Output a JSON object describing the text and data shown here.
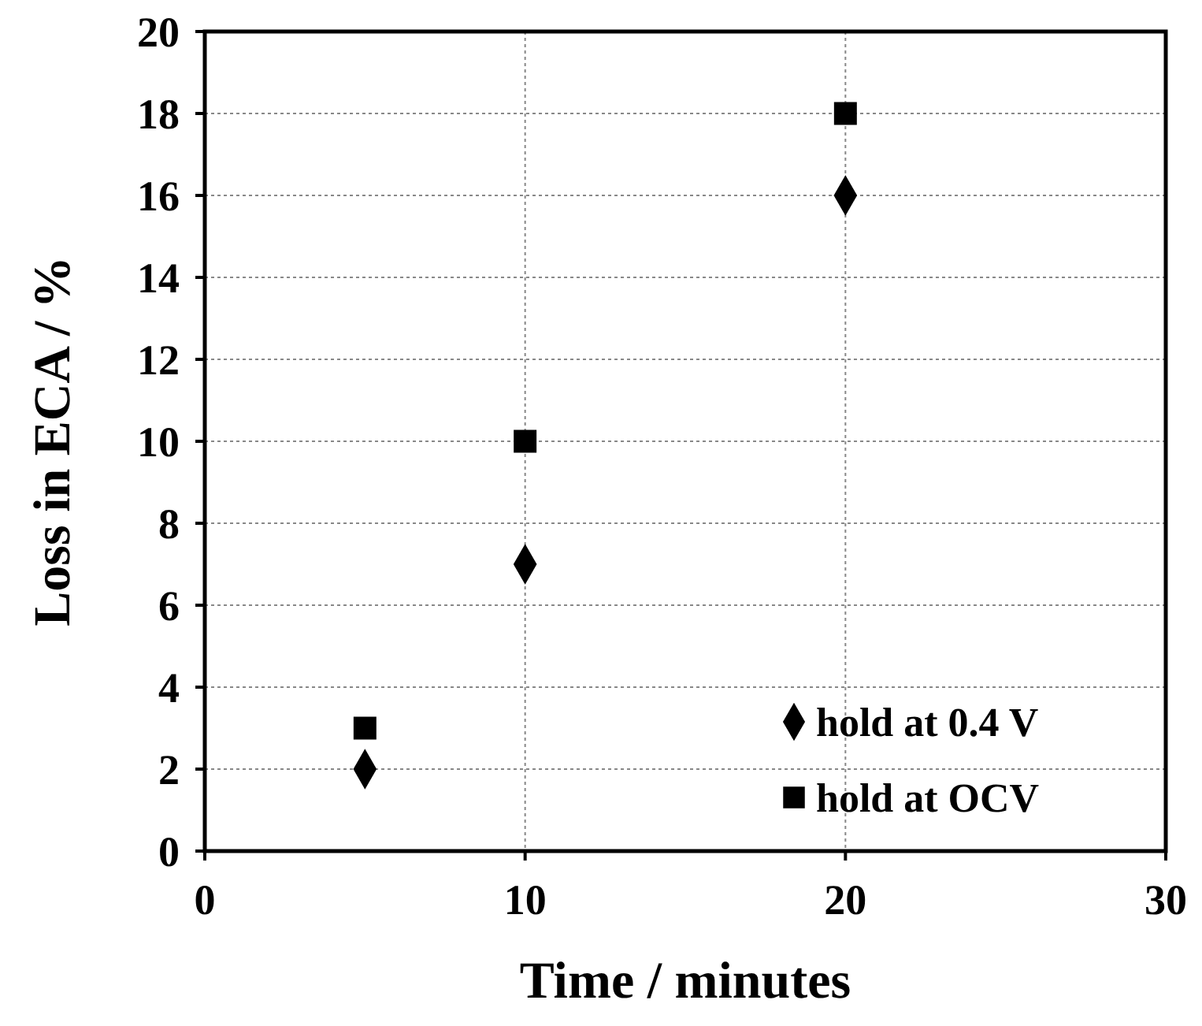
{
  "chart_data": {
    "type": "scatter",
    "xlabel": "Time / minutes",
    "ylabel": "Loss in ECA / %",
    "xlim": [
      0,
      30
    ],
    "xticks": [
      0,
      10,
      20,
      30
    ],
    "ylim": [
      0,
      20
    ],
    "yticks": [
      0,
      2,
      4,
      6,
      8,
      10,
      12,
      14,
      16,
      18,
      20
    ],
    "grid": true,
    "legend": "bottom right",
    "series": [
      {
        "name": "hold at 0.4 V",
        "color": "#000000",
        "marker": "diamond",
        "x": [
          5,
          10,
          20
        ],
        "values": [
          2,
          7,
          16
        ]
      },
      {
        "name": "hold at OCV",
        "color": "#000000",
        "marker": "square",
        "x": [
          5,
          10,
          20
        ],
        "values": [
          3,
          10,
          18
        ]
      }
    ]
  }
}
